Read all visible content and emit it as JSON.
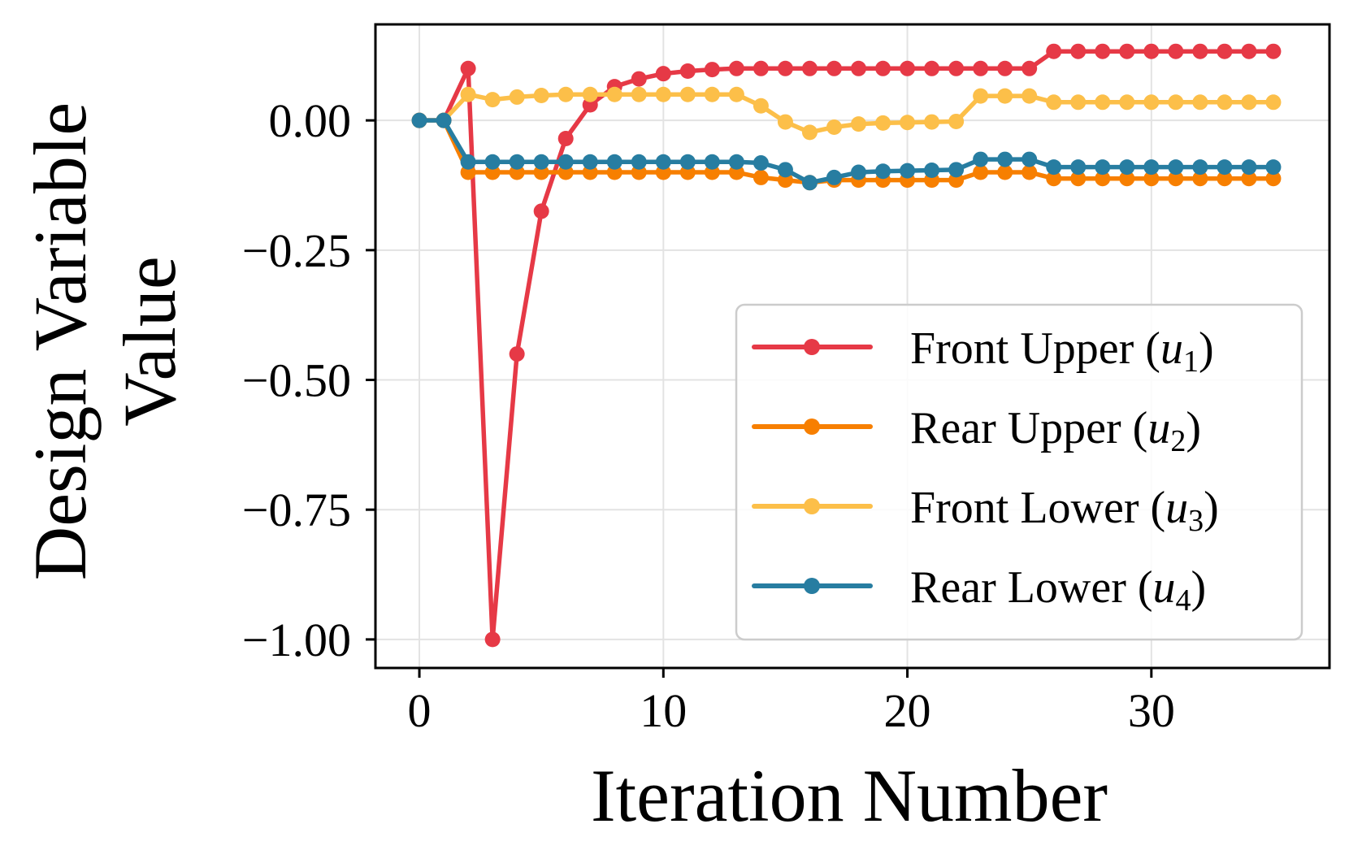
{
  "chart_data": {
    "type": "line",
    "title": "",
    "xlabel": "Iteration Number",
    "ylabel_lines": [
      "Design Variable",
      "Value"
    ],
    "xlim": [
      -1.8,
      37.3
    ],
    "ylim": [
      -1.055,
      0.185
    ],
    "xticks": [
      0,
      10,
      20,
      30
    ],
    "xtick_labels": [
      "0",
      "10",
      "20",
      "30"
    ],
    "yticks": [
      0.0,
      -0.25,
      -0.5,
      -0.75,
      -1.0
    ],
    "ytick_labels": [
      "0.00",
      "−0.25",
      "−0.50",
      "−0.75",
      "−1.00"
    ],
    "grid": true,
    "legend_position": "lower right",
    "x": [
      0,
      1,
      2,
      3,
      4,
      5,
      6,
      7,
      8,
      9,
      10,
      11,
      12,
      13,
      14,
      15,
      16,
      17,
      18,
      19,
      20,
      21,
      22,
      23,
      24,
      25,
      26,
      27,
      28,
      29,
      30,
      31,
      32,
      33,
      34,
      35
    ],
    "series": [
      {
        "name": "Front Upper (u1)",
        "label_text": "Front Upper (",
        "label_var": "u",
        "label_sub": "1",
        "label_close": ")",
        "color": "#e63946",
        "values": [
          0,
          0,
          0.1,
          -1.0,
          -0.45,
          -0.175,
          -0.035,
          0.03,
          0.065,
          0.08,
          0.09,
          0.095,
          0.098,
          0.1,
          0.1,
          0.1,
          0.1,
          0.1,
          0.1,
          0.1,
          0.1,
          0.1,
          0.1,
          0.1,
          0.1,
          0.1,
          0.133,
          0.133,
          0.133,
          0.133,
          0.133,
          0.133,
          0.133,
          0.133,
          0.133,
          0.133
        ]
      },
      {
        "name": "Rear Upper (u2)",
        "label_text": "Rear Upper (",
        "label_var": "u",
        "label_sub": "2",
        "label_close": ")",
        "color": "#f77f00",
        "values": [
          0,
          0,
          -0.1,
          -0.1,
          -0.1,
          -0.1,
          -0.1,
          -0.1,
          -0.1,
          -0.1,
          -0.1,
          -0.1,
          -0.1,
          -0.1,
          -0.11,
          -0.115,
          -0.12,
          -0.115,
          -0.115,
          -0.115,
          -0.115,
          -0.115,
          -0.115,
          -0.1,
          -0.1,
          -0.1,
          -0.112,
          -0.112,
          -0.112,
          -0.112,
          -0.112,
          -0.112,
          -0.112,
          -0.112,
          -0.112,
          -0.112
        ]
      },
      {
        "name": "Front Lower (u3)",
        "label_text": "Front Lower (",
        "label_var": "u",
        "label_sub": "3",
        "label_close": ")",
        "color": "#fcbf49",
        "values": [
          0,
          0,
          0.05,
          0.04,
          0.045,
          0.048,
          0.05,
          0.05,
          0.05,
          0.05,
          0.05,
          0.05,
          0.05,
          0.05,
          0.028,
          -0.003,
          -0.023,
          -0.013,
          -0.007,
          -0.005,
          -0.004,
          -0.003,
          -0.002,
          0.047,
          0.047,
          0.047,
          0.035,
          0.035,
          0.035,
          0.035,
          0.035,
          0.035,
          0.035,
          0.035,
          0.035,
          0.035
        ]
      },
      {
        "name": "Rear Lower (u4)",
        "label_text": "Rear Lower (",
        "label_var": "u",
        "label_sub": "4",
        "label_close": ")",
        "color": "#277da1",
        "values": [
          0,
          0,
          -0.08,
          -0.08,
          -0.08,
          -0.08,
          -0.08,
          -0.08,
          -0.08,
          -0.08,
          -0.08,
          -0.08,
          -0.08,
          -0.08,
          -0.082,
          -0.095,
          -0.12,
          -0.11,
          -0.1,
          -0.098,
          -0.097,
          -0.096,
          -0.095,
          -0.075,
          -0.075,
          -0.075,
          -0.09,
          -0.09,
          -0.09,
          -0.09,
          -0.09,
          -0.09,
          -0.09,
          -0.09,
          -0.09,
          -0.09
        ]
      }
    ]
  }
}
